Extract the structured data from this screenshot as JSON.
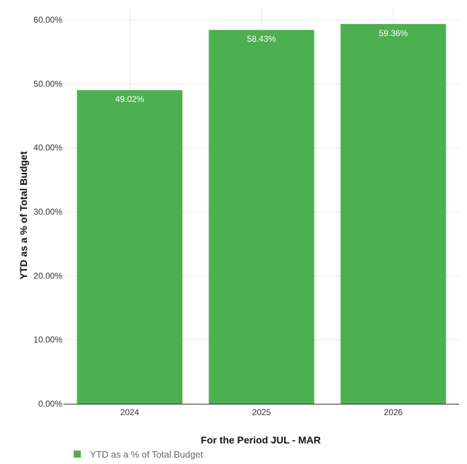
{
  "chart_data": {
    "type": "bar",
    "categories": [
      "2024",
      "2025",
      "2026"
    ],
    "values": [
      49.02,
      58.43,
      59.36
    ],
    "value_labels": [
      "49.02%",
      "58.43%",
      "59.36%"
    ],
    "series": [
      {
        "name": "YTD as a % of Total Budget",
        "values": [
          49.02,
          58.43,
          59.36
        ],
        "color": "#4caf50"
      }
    ],
    "title": "",
    "xlabel": "For the Period JUL - MAR",
    "ylabel": "YTD as a % of Total Budget",
    "ylim": [
      0,
      62
    ],
    "yticks": [
      0,
      10,
      20,
      30,
      40,
      50,
      60
    ],
    "ytick_labels": [
      "0.00%",
      "10.00%",
      "20.00%",
      "30.00%",
      "40.00%",
      "50.00%",
      "60.00%"
    ],
    "grid": true,
    "legend": {
      "position": "bottom-left",
      "label": "YTD as a % of Total Budget",
      "color": "#4caf50"
    },
    "colors": {
      "bar": "#4caf50",
      "grid": "#e6e6e6",
      "axis": "#333333"
    }
  }
}
